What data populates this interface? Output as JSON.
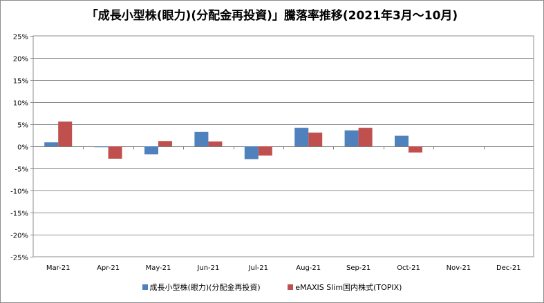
{
  "chart_data": {
    "type": "bar",
    "title": "「成長小型株(眼力)(分配金再投資)」騰落率推移(2021年3月～10月)",
    "categories": [
      "Mar-21",
      "Apr-21",
      "May-21",
      "Jun-21",
      "Jul-21",
      "Aug-21",
      "Sep-21",
      "Oct-21",
      "Nov-21",
      "Dec-21"
    ],
    "series": [
      {
        "name": "成長小型株(眼力)(分配金再投資)",
        "color": "#4f81bd",
        "values": [
          0.9,
          -0.2,
          -1.8,
          3.3,
          -2.9,
          4.2,
          3.6,
          2.4,
          null,
          null
        ]
      },
      {
        "name": "eMAXIS Slim国内株式(TOPIX)",
        "color": "#c0504d",
        "values": [
          5.6,
          -2.8,
          1.2,
          1.1,
          -2.1,
          3.1,
          4.2,
          -1.4,
          null,
          null
        ]
      }
    ],
    "yticks": [
      "25%",
      "20%",
      "15%",
      "10%",
      "5%",
      "0%",
      "-5%",
      "-10%",
      "-15%",
      "-20%",
      "-25%"
    ],
    "ylim": [
      -25,
      25
    ],
    "ystep": 5,
    "grid": true,
    "legend_position": "bottom"
  }
}
